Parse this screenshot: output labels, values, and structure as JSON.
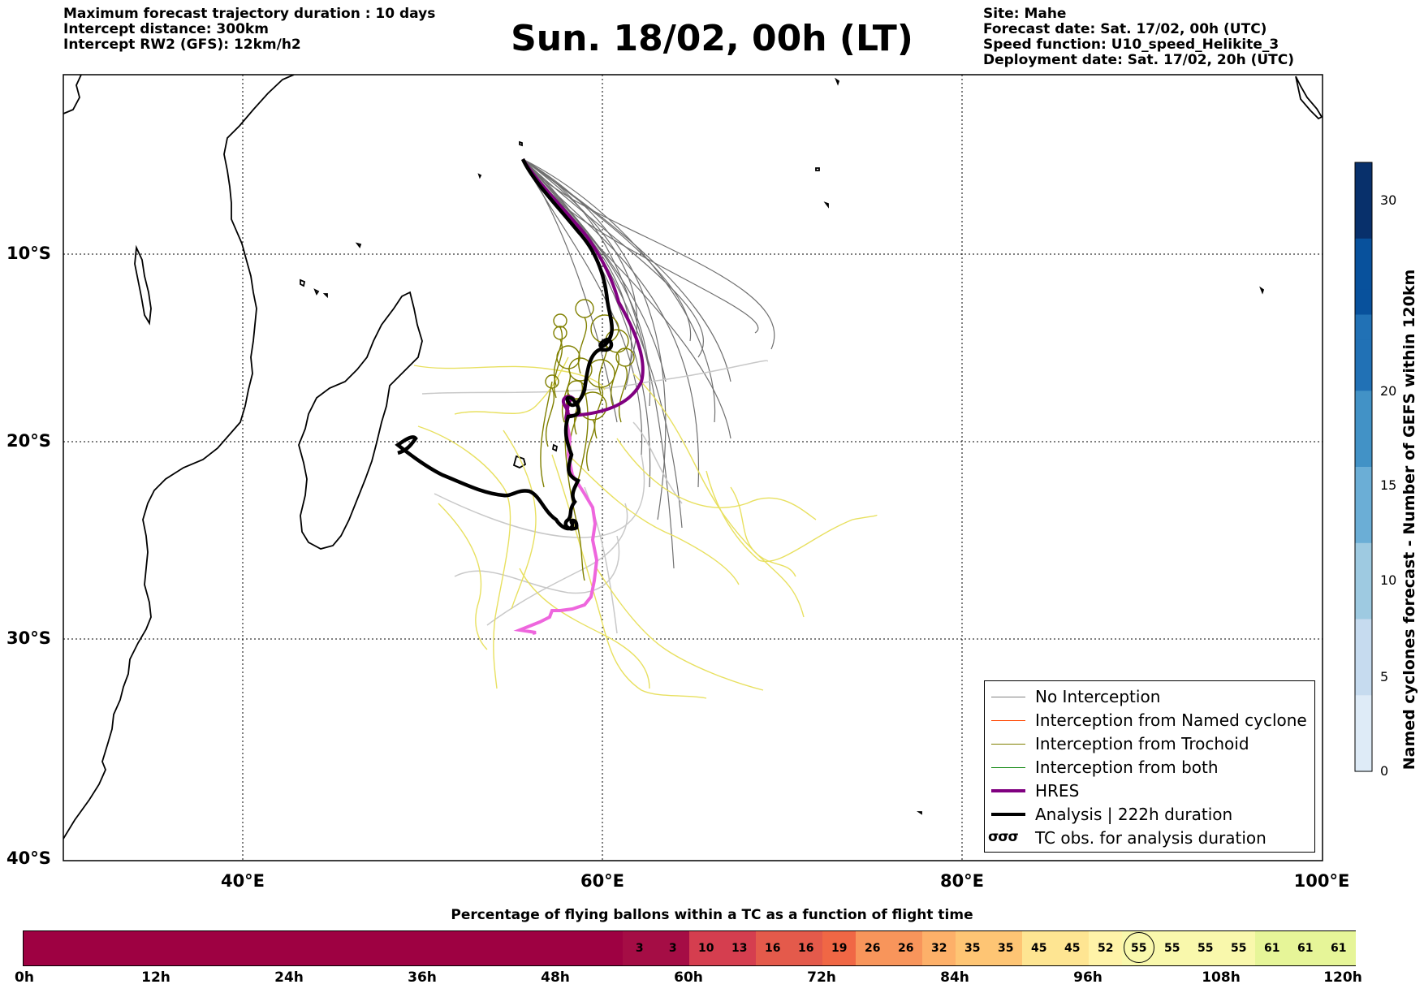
{
  "header_left": [
    "Maximum forecast trajectory duration : 10 days",
    "Intercept distance: 300km",
    "Intercept RW2 (GFS):  12km/h2"
  ],
  "title": "Sun. 18/02, 00h (LT)",
  "header_right": [
    "Site: Mahe",
    "Forecast date: Sat. 17/02, 00h (UTC)",
    "Speed function: U10_speed_Helikite_3",
    "Deployment date: Sat. 17/02, 20h (UTC)"
  ],
  "map": {
    "lat_labels": [
      "10°S",
      "20°S",
      "30°S",
      "40°S"
    ],
    "lon_labels": [
      "40°E",
      "60°E",
      "80°E",
      "100°E"
    ],
    "extent": {
      "lon": [
        30,
        100
      ],
      "lat": [
        -40,
        1
      ]
    },
    "launch_site": {
      "lon": 55.5,
      "lat": -4.6
    }
  },
  "colorbar": {
    "label": "Named cyclones forecast - Number of GEFS within 120km",
    "ticks": [
      "0",
      "5",
      "10",
      "15",
      "20",
      "30"
    ],
    "colors": [
      "#deebf7",
      "#c6dbef",
      "#9ecae1",
      "#6baed6",
      "#4292c6",
      "#2171b5",
      "#08519c",
      "#08306b"
    ]
  },
  "legend": {
    "items": [
      {
        "label": "No Interception",
        "color": "#808080",
        "width": 1
      },
      {
        "label": "Interception from Named cyclone",
        "color": "#ff4500",
        "width": 1
      },
      {
        "label": "Interception from Trochoid",
        "color": "#808000",
        "width": 1
      },
      {
        "label": "Interception from both",
        "color": "#008000",
        "width": 1
      },
      {
        "label": "HRES",
        "color": "#800080",
        "width": 4
      },
      {
        "label": "Analysis | 222h duration",
        "color": "#000000",
        "width": 4
      }
    ],
    "obs_symbol": "σσσ",
    "obs_label": "TC obs. for analysis duration"
  },
  "bottom_bar": {
    "title": "Percentage of flying ballons within a TC as a function of flight time",
    "values": [
      null,
      null,
      null,
      null,
      null,
      null,
      null,
      null,
      null,
      null,
      null,
      null,
      null,
      null,
      null,
      null,
      null,
      null,
      3,
      3,
      10,
      13,
      16,
      16,
      19,
      26,
      26,
      32,
      35,
      35,
      45,
      45,
      52,
      55,
      55,
      55,
      55,
      61,
      61,
      61
    ],
    "highlight_index": 33,
    "tick_labels": [
      "0h",
      "12h",
      "24h",
      "36h",
      "48h",
      "60h",
      "72h",
      "84h",
      "96h",
      "108h",
      "120h"
    ]
  }
}
